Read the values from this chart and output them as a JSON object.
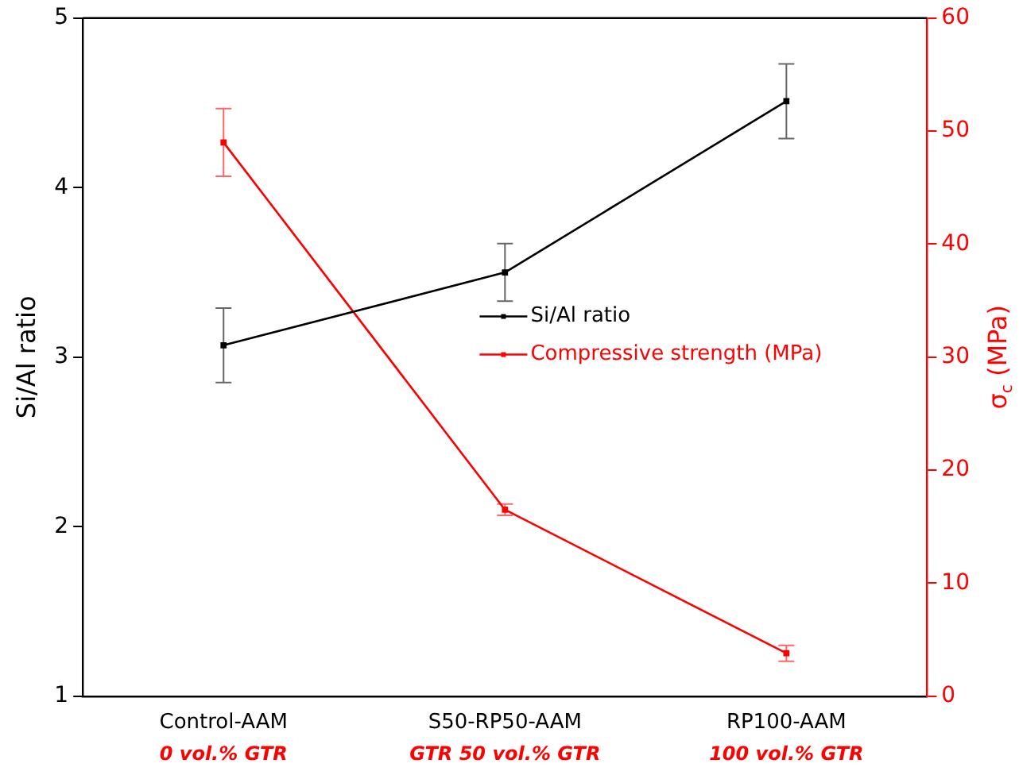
{
  "chart_data": {
    "type": "line",
    "categories": [
      "Control-AAM",
      "S50-RP50-AAM",
      "RP100-AAM"
    ],
    "ylabel": "Si/Al ratio",
    "y2label": "σ$_{c}$ (MPa)",
    "ylim": [
      1,
      5
    ],
    "yticks": [
      1,
      2,
      3,
      4,
      5
    ],
    "y2lim": [
      0,
      60
    ],
    "y2ticks": [
      0,
      10,
      20,
      30,
      40,
      50,
      60
    ],
    "series": [
      {
        "name": "Si/Al ratio",
        "color": "#000000",
        "values": [
          3.07,
          3.5,
          4.51
        ],
        "errors": [
          0.22,
          0.17,
          0.22
        ]
      },
      {
        "name": "Compressive strength (MPa)",
        "color": "#ff0000",
        "axis": "y2",
        "values": [
          49,
          16.5,
          3.8
        ],
        "errors": [
          3,
          0.5,
          0.7
        ]
      }
    ],
    "annotations": [
      "0 vol.% GTR",
      "GTR 50 vol.% GTR",
      "100 vol.% GTR"
    ],
    "legend": "right",
    "marker": "square",
    "line_style": "solid",
    "grid": false
  }
}
